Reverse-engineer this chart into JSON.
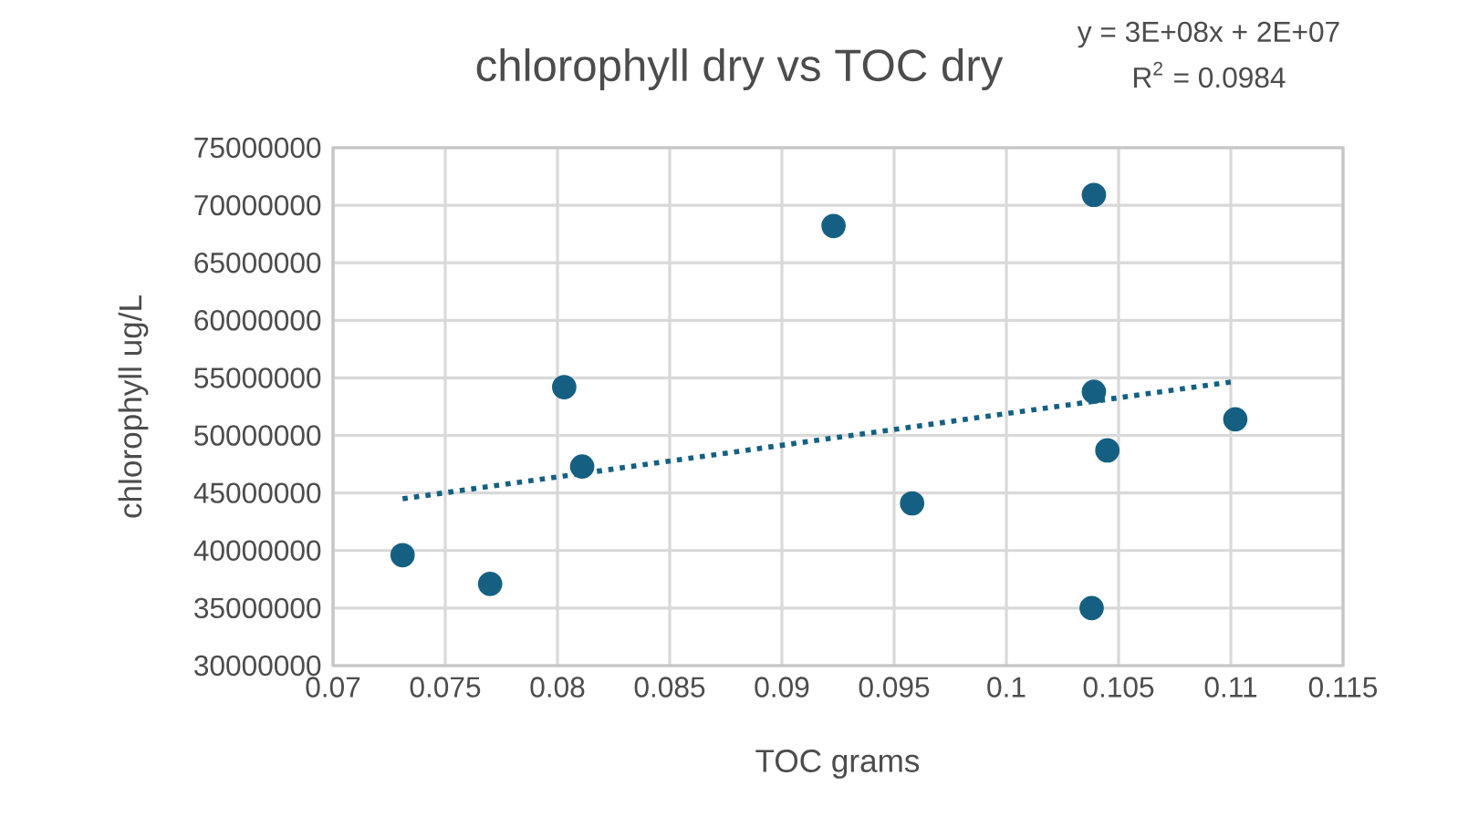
{
  "chart_data": {
    "type": "scatter",
    "title": "chlorophyll dry vs TOC dry",
    "xlabel": "TOC grams",
    "ylabel": "chlorophyll ug/L",
    "annotations": [
      "y = 3E+08x + 2E+07",
      "R$^{2}$ = 0.0984"
    ],
    "series": [
      {
        "color": "#156082",
        "marker": "circle",
        "x": [
          0.0731,
          0.077,
          0.0803,
          0.0811,
          0.0923,
          0.0958,
          0.1039,
          0.1039,
          0.1045,
          0.1038,
          0.1102
        ],
        "values": [
          39600000,
          37100000,
          54200000,
          47300000,
          68200000,
          44100000,
          70900000,
          53800000,
          48700000,
          35000000,
          51400000
        ]
      },
      {
        "type": "line",
        "color": "#156082",
        "marker": "none",
        "line_style": "dotted",
        "x": [
          0.0731,
          0.1102
        ],
        "values": [
          44500000,
          54700000
        ]
      }
    ],
    "xlim": [
      0.07,
      0.115
    ],
    "xticks": [
      0.07,
      0.075,
      0.08,
      0.085,
      0.09,
      0.095,
      0.1,
      0.105,
      0.11,
      0.115
    ],
    "ylim": [
      30000000,
      75000000
    ],
    "yticks": [
      30000000,
      35000000,
      40000000,
      45000000,
      50000000,
      55000000,
      60000000,
      65000000,
      70000000,
      75000000
    ],
    "grid": true
  }
}
